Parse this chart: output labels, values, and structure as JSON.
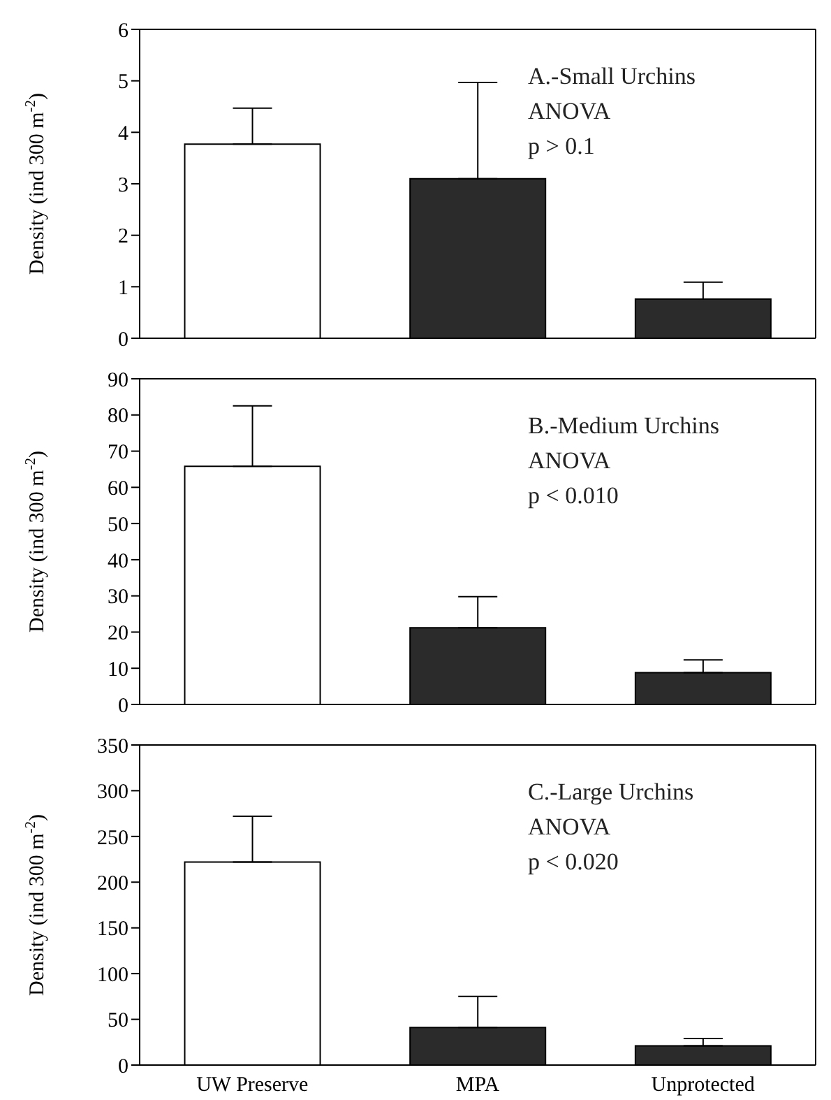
{
  "chart_data": [
    {
      "type": "bar",
      "annotations": [
        "A.-Small Urchins",
        "ANOVA",
        "p > 0.1"
      ],
      "ylabel": "Density (ind 300 m$^{-2}$)",
      "categories": [
        null,
        null,
        null
      ],
      "values": [
        3.77,
        3.1,
        0.76
      ],
      "errors": [
        [
          3.77,
          4.47
        ],
        [
          3.1,
          4.97
        ],
        [
          0.76,
          1.09
        ]
      ],
      "colors": [
        "#ffffff",
        "#2b2b2b",
        "#2b2b2b"
      ],
      "ylim": [
        0,
        6
      ],
      "yticks": [
        0,
        1,
        2,
        3,
        4,
        5,
        6
      ],
      "tick_labels": "y"
    },
    {
      "type": "bar",
      "annotations": [
        "B.-Medium Urchins",
        "ANOVA",
        "p < 0.010"
      ],
      "ylabel": "Density (ind 300 m$^{-2}$)",
      "categories": [
        null,
        null,
        null
      ],
      "values": [
        65.8,
        21.2,
        8.8
      ],
      "errors": [
        [
          65.8,
          82.5
        ],
        [
          21.2,
          29.8
        ],
        [
          8.8,
          12.3
        ]
      ],
      "colors": [
        "#ffffff",
        "#2b2b2b",
        "#2b2b2b"
      ],
      "ylim": [
        0,
        90
      ],
      "yticks": [
        0,
        10,
        20,
        30,
        40,
        50,
        60,
        70,
        80,
        90
      ],
      "tick_labels": "y"
    },
    {
      "type": "bar",
      "annotations": [
        "C.-Large Urchins",
        "ANOVA",
        "p < 0.020"
      ],
      "ylabel": "Density (ind 300 m$^{-2}$)",
      "categories": [
        "UW Preserve",
        "MPA",
        "Unprotected"
      ],
      "values": [
        222,
        41,
        21
      ],
      "errors": [
        [
          222,
          272
        ],
        [
          41,
          75
        ],
        [
          21,
          29
        ]
      ],
      "colors": [
        "#ffffff",
        "#2b2b2b",
        "#2b2b2b"
      ],
      "ylim": [
        0,
        350
      ],
      "yticks": [
        0,
        50,
        100,
        150,
        200,
        250,
        300,
        350
      ]
    }
  ]
}
